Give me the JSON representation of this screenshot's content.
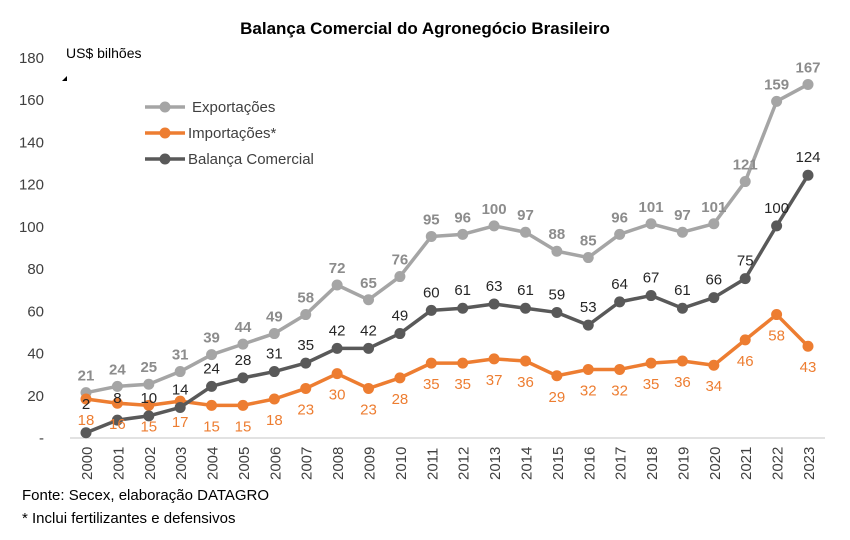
{
  "chart_data": {
    "type": "line",
    "title": "Balança Comercial do Agronegócio Brasileiro",
    "ylabel": "US$ bilhões",
    "ylim": [
      0,
      180
    ],
    "yticks": [
      "-",
      "20",
      "40",
      "60",
      "80",
      "100",
      "120",
      "140",
      "160",
      "180"
    ],
    "grid": false,
    "legend": "top-left",
    "x": [
      "2000",
      "2001",
      "2002",
      "2003",
      "2004",
      "2005",
      "2006",
      "2007",
      "2008",
      "2009",
      "2010",
      "2011",
      "2012",
      "2013",
      "2014",
      "2015",
      "2016",
      "2017",
      "2018",
      "2019",
      "2020",
      "2021",
      "2022",
      "2023"
    ],
    "series": [
      {
        "name": "Exportações",
        "color": "#a5a5a5",
        "values": [
          21,
          24,
          25,
          31,
          39,
          44,
          49,
          58,
          72,
          65,
          76,
          95,
          96,
          100,
          97,
          88,
          85,
          96,
          101,
          97,
          101,
          121,
          159,
          167
        ]
      },
      {
        "name": "Importações*",
        "color": "#ed7d31",
        "values": [
          18,
          16,
          15,
          17,
          15,
          15,
          18,
          23,
          30,
          23,
          28,
          35,
          35,
          37,
          36,
          29,
          32,
          32,
          35,
          36,
          34,
          46,
          58,
          43
        ]
      },
      {
        "name": "Balança Comercial",
        "color": "#595959",
        "values": [
          2,
          8,
          10,
          14,
          24,
          28,
          31,
          35,
          42,
          42,
          49,
          60,
          61,
          63,
          61,
          59,
          53,
          64,
          67,
          61,
          66,
          75,
          100,
          124
        ]
      }
    ]
  },
  "footer": {
    "source": "Fonte: Secex, elaboração DATAGRO",
    "note": "* Inclui fertilizantes e defensivos"
  }
}
